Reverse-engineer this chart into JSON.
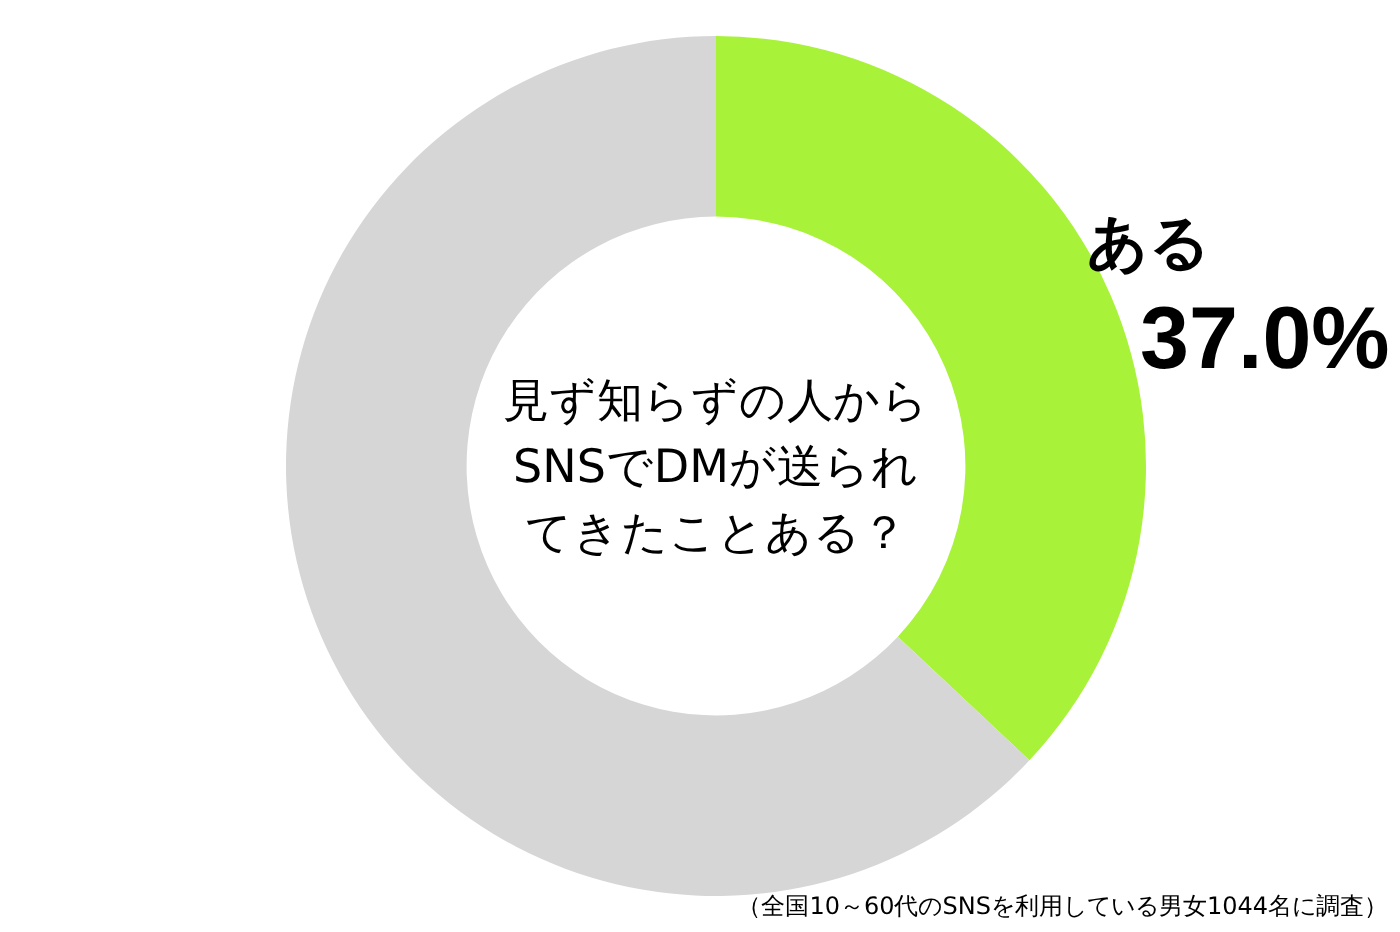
{
  "chart_data": {
    "type": "donut",
    "title": "見ず知らずの人からSNSでDMが送られてきたことある？",
    "categories": [
      "ある",
      null
    ],
    "values": [
      37.0,
      63.0
    ],
    "colors": [
      "#a8f23a",
      "#d6d6d6"
    ],
    "value_labels": [
      "37.0%",
      null
    ],
    "legend": false,
    "annotations": [
      "（全国10～60代のSNSを利用している男女1044名に調査）"
    ]
  }
}
